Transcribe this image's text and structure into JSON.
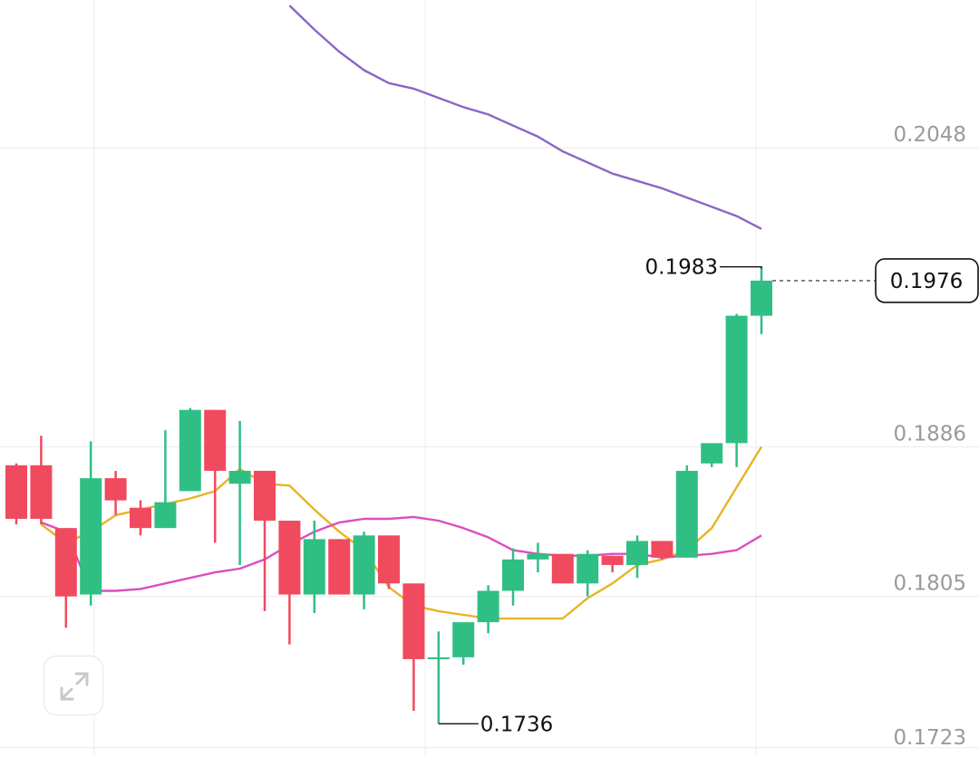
{
  "chart_data": {
    "type": "candlestick",
    "price_axis": {
      "ticks": [
        "0.2048",
        "0.1886",
        "0.1805",
        "0.1723"
      ],
      "range": [
        0.1718,
        0.2128
      ]
    },
    "grid": true,
    "candles": [
      {
        "o": 0.1876,
        "h": 0.1877,
        "l": 0.1844,
        "c": 0.1847
      },
      {
        "o": 0.1876,
        "h": 0.1892,
        "l": 0.1844,
        "c": 0.1847
      },
      {
        "o": 0.1842,
        "h": 0.1842,
        "l": 0.1788,
        "c": 0.1805
      },
      {
        "o": 0.1806,
        "h": 0.1889,
        "l": 0.18,
        "c": 0.1869
      },
      {
        "o": 0.1869,
        "h": 0.1873,
        "l": 0.1849,
        "c": 0.1857
      },
      {
        "o": 0.1853,
        "h": 0.1857,
        "l": 0.1838,
        "c": 0.1842
      },
      {
        "o": 0.1842,
        "h": 0.1895,
        "l": 0.1842,
        "c": 0.1856
      },
      {
        "o": 0.1862,
        "h": 0.1907,
        "l": 0.1862,
        "c": 0.1906
      },
      {
        "o": 0.1906,
        "h": 0.1906,
        "l": 0.1834,
        "c": 0.1873
      },
      {
        "o": 0.1866,
        "h": 0.19,
        "l": 0.1822,
        "c": 0.1873
      },
      {
        "o": 0.1873,
        "h": 0.1873,
        "l": 0.1797,
        "c": 0.1846
      },
      {
        "o": 0.1846,
        "h": 0.1846,
        "l": 0.1779,
        "c": 0.1806
      },
      {
        "o": 0.1806,
        "h": 0.1846,
        "l": 0.1796,
        "c": 0.1836
      },
      {
        "o": 0.1836,
        "h": 0.1836,
        "l": 0.1806,
        "c": 0.1806
      },
      {
        "o": 0.1806,
        "h": 0.184,
        "l": 0.1798,
        "c": 0.1838
      },
      {
        "o": 0.1838,
        "h": 0.1838,
        "l": 0.1809,
        "c": 0.1812
      },
      {
        "o": 0.1812,
        "h": 0.1812,
        "l": 0.1743,
        "c": 0.1771
      },
      {
        "o": 0.1771,
        "h": 0.1786,
        "l": 0.1736,
        "c": 0.1772
      },
      {
        "o": 0.1772,
        "h": 0.1791,
        "l": 0.1768,
        "c": 0.1791
      },
      {
        "o": 0.1791,
        "h": 0.1811,
        "l": 0.1785,
        "c": 0.1808
      },
      {
        "o": 0.1808,
        "h": 0.1831,
        "l": 0.18,
        "c": 0.1825
      },
      {
        "o": 0.1825,
        "h": 0.1834,
        "l": 0.1818,
        "c": 0.1828
      },
      {
        "o": 0.1828,
        "h": 0.1828,
        "l": 0.1812,
        "c": 0.1812
      },
      {
        "o": 0.1812,
        "h": 0.183,
        "l": 0.1805,
        "c": 0.1828
      },
      {
        "o": 0.1827,
        "h": 0.1827,
        "l": 0.1818,
        "c": 0.1822
      },
      {
        "o": 0.1822,
        "h": 0.1838,
        "l": 0.1815,
        "c": 0.1835
      },
      {
        "o": 0.1835,
        "h": 0.1835,
        "l": 0.1825,
        "c": 0.1826
      },
      {
        "o": 0.1826,
        "h": 0.1876,
        "l": 0.1826,
        "c": 0.1873
      },
      {
        "o": 0.1877,
        "h": 0.1886,
        "l": 0.1875,
        "c": 0.1888
      },
      {
        "o": 0.1888,
        "h": 0.1958,
        "l": 0.1875,
        "c": 0.1957
      },
      {
        "o": 0.1957,
        "h": 0.1983,
        "l": 0.1947,
        "c": 0.1976
      }
    ],
    "moving_averages": [
      {
        "color": "#e8b423",
        "values": [
          null,
          0.1844,
          0.1834,
          0.184,
          0.1849,
          0.1852,
          0.1855,
          0.1858,
          0.1862,
          0.1874,
          0.1866,
          0.1865,
          0.1852,
          0.184,
          0.183,
          0.181,
          0.18,
          0.1797,
          0.1795,
          0.1793,
          0.1793,
          0.1793,
          0.1793,
          0.1804,
          0.1812,
          0.1822,
          0.1825,
          0.183,
          0.1842,
          0.1864,
          0.1886
        ]
      },
      {
        "color": "#d94fc0",
        "values": [
          null,
          0.1845,
          0.184,
          0.1808,
          0.1808,
          0.1809,
          0.1812,
          0.1815,
          0.1818,
          0.182,
          0.1825,
          0.1833,
          0.184,
          0.1845,
          0.1847,
          0.1847,
          0.1848,
          0.1846,
          0.1842,
          0.1837,
          0.183,
          0.1828,
          0.1827,
          0.1827,
          0.1828,
          0.1828,
          0.1826,
          0.1827,
          0.1828,
          0.183,
          0.1838
        ]
      },
      {
        "color": "#8a66c8",
        "values": [
          null,
          null,
          null,
          null,
          null,
          null,
          null,
          null,
          null,
          null,
          null,
          0.2125,
          0.2112,
          0.21,
          0.209,
          0.2083,
          0.208,
          0.2075,
          0.207,
          0.2066,
          0.206,
          0.2054,
          0.2046,
          0.204,
          0.2034,
          0.203,
          0.2026,
          0.2021,
          0.2016,
          0.2011,
          0.2004
        ]
      }
    ],
    "annotations": {
      "high_label": "0.1983",
      "low_label": "0.1736"
    },
    "current_price": "0.1976",
    "colors": {
      "up": "#2fbf85",
      "down": "#f04a5e"
    }
  },
  "controls": {
    "expand_icon": "expand-arrows-icon"
  }
}
